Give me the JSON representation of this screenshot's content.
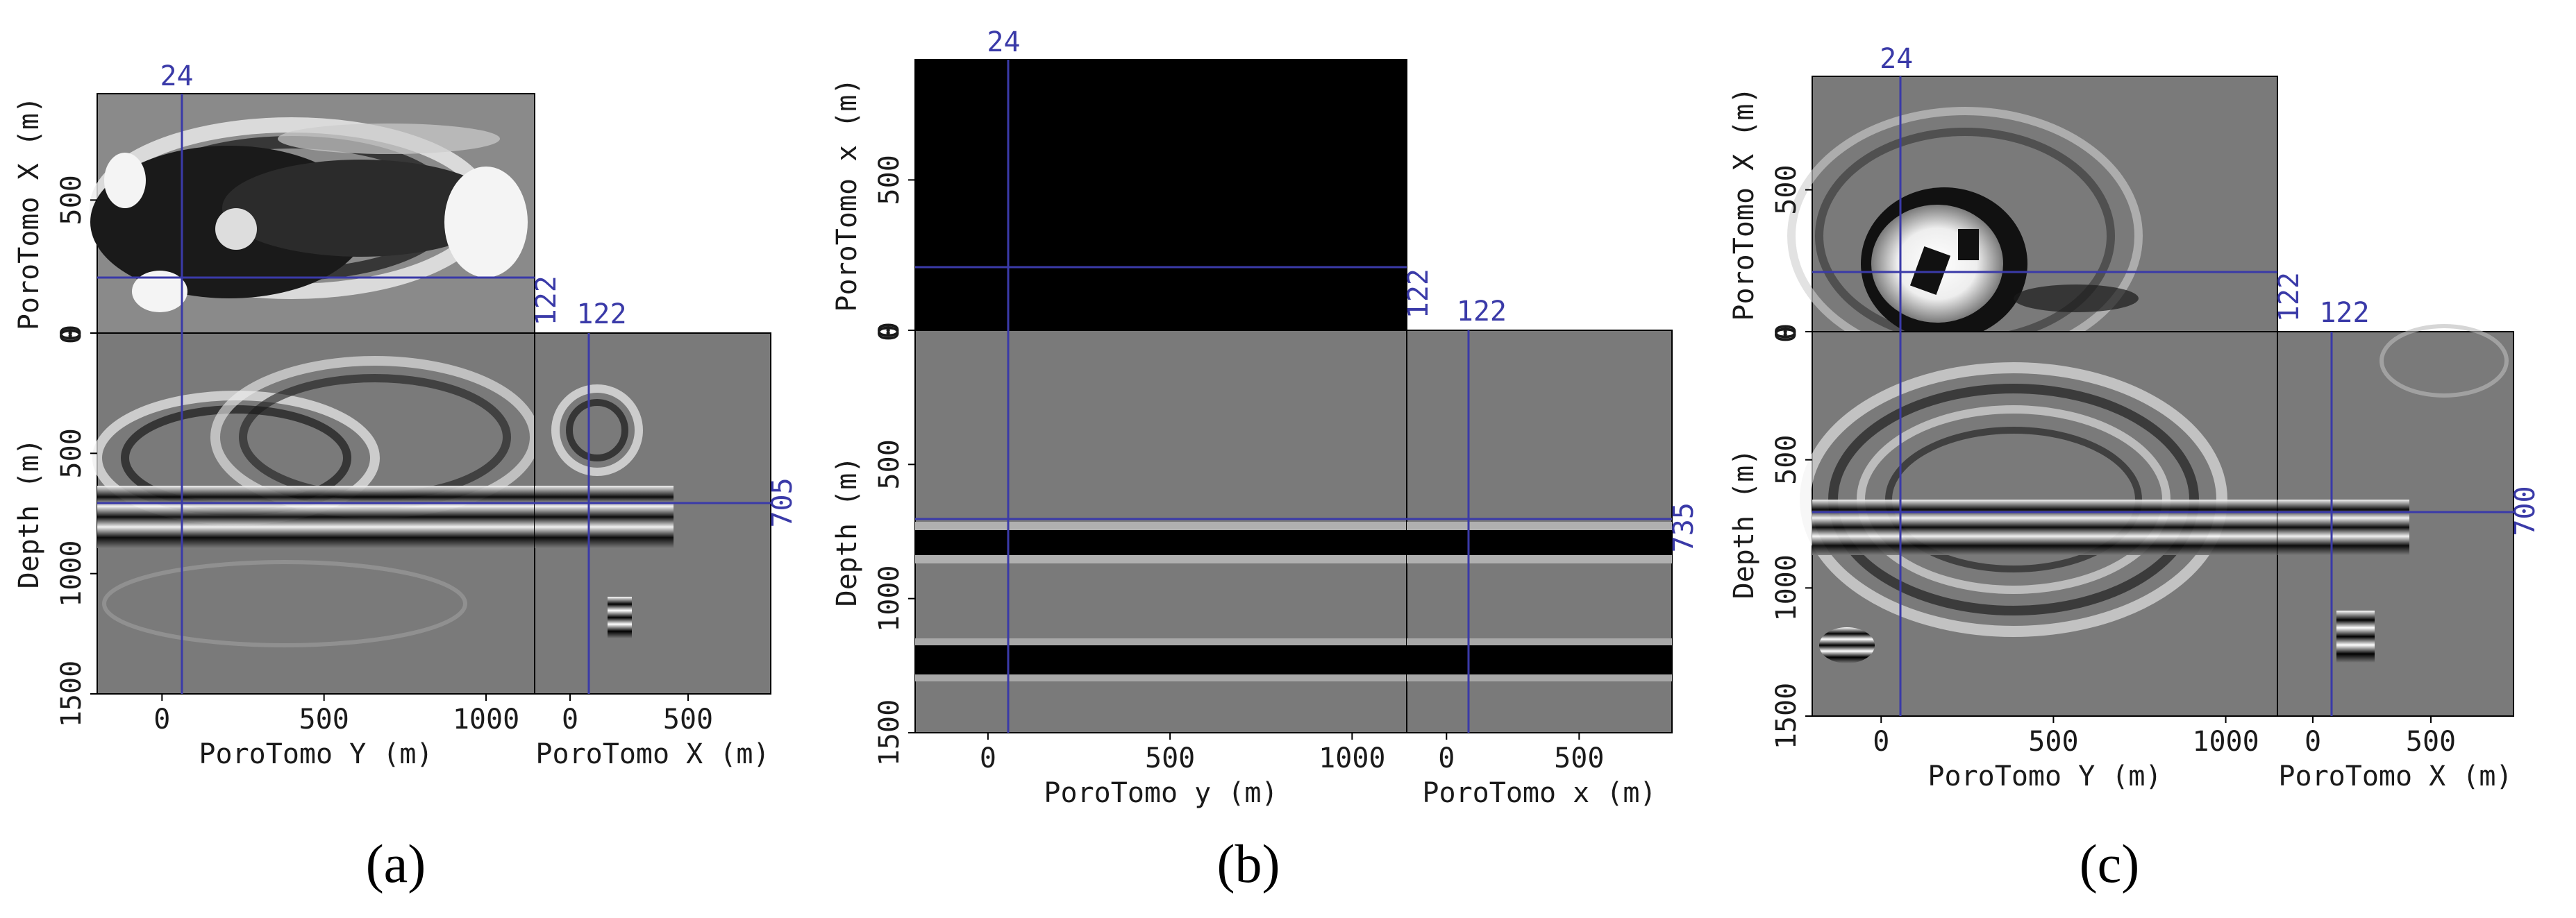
{
  "figure": {
    "captions": [
      "(a)",
      "(b)",
      "(c)"
    ]
  },
  "chart_data": [
    {
      "type": "heatmap",
      "panel_label": "(a)",
      "top_view": {
        "ylabel": "PoroTomo X (m)",
        "yticks": [
          "0",
          "500"
        ]
      },
      "front_view": {
        "xlabel": "PoroTomo Y (m)",
        "ylabel": "Depth (m)",
        "xticks": [
          "0",
          "500",
          "1000"
        ],
        "yticks": [
          "500",
          "1000",
          "1500"
        ],
        "xlim": [
          -200,
          1150
        ],
        "ylim": [
          0,
          1500
        ]
      },
      "side_view": {
        "xlabel": "PoroTomo X (m)",
        "xticks": [
          "0",
          "500"
        ],
        "xlim": [
          -150,
          850
        ],
        "top_corner_tick": "0"
      },
      "cursor": {
        "y": 24,
        "x": 122,
        "depth": 705,
        "y_label": "24",
        "x_label_top": "122",
        "x_label_side": "122",
        "depth_label": "705"
      },
      "colormap": "grayscale seismic"
    },
    {
      "type": "heatmap",
      "panel_label": "(b)",
      "top_view": {
        "ylabel": "PoroTomo x (m)",
        "yticks": [
          "0",
          "500"
        ]
      },
      "front_view": {
        "xlabel": "PoroTomo y (m)",
        "ylabel": "Depth (m)",
        "xticks": [
          "0",
          "500",
          "1000"
        ],
        "yticks": [
          "500",
          "1000",
          "1500"
        ],
        "xlim": [
          -200,
          1150
        ],
        "ylim": [
          0,
          1500
        ],
        "reflectors_depth": [
          [
            700,
            830
          ],
          [
            1150,
            1280
          ]
        ]
      },
      "side_view": {
        "xlabel": "PoroTomo x (m)",
        "xticks": [
          "0",
          "500"
        ],
        "xlim": [
          -150,
          850
        ],
        "top_corner_tick": "0"
      },
      "cursor": {
        "y": 24,
        "x": 122,
        "depth": 735,
        "y_label": "24",
        "x_label_top": "122",
        "x_label_side": "122",
        "depth_label": "735"
      },
      "colormap": "grayscale"
    },
    {
      "type": "heatmap",
      "panel_label": "(c)",
      "top_view": {
        "ylabel": "PoroTomo X (m)",
        "yticks": [
          "0",
          "500"
        ]
      },
      "front_view": {
        "xlabel": "PoroTomo Y (m)",
        "ylabel": "Depth (m)",
        "xticks": [
          "0",
          "500",
          "1000"
        ],
        "yticks": [
          "500",
          "1000",
          "1500"
        ],
        "xlim": [
          -200,
          1150
        ],
        "ylim": [
          0,
          1500
        ]
      },
      "side_view": {
        "xlabel": "PoroTomo X (m)",
        "xticks": [
          "0",
          "500"
        ],
        "xlim": [
          -150,
          850
        ],
        "top_corner_tick": "0"
      },
      "cursor": {
        "y": 24,
        "x": 122,
        "depth": 700,
        "y_label": "24",
        "x_label_top": "122",
        "x_label_side": "122",
        "depth_label": "700"
      },
      "colormap": "grayscale seismic"
    }
  ],
  "style": {
    "cursor_color": "#3a3aa8",
    "text_color": "#1a1a1a",
    "background_gray": "#7a7a7a"
  }
}
